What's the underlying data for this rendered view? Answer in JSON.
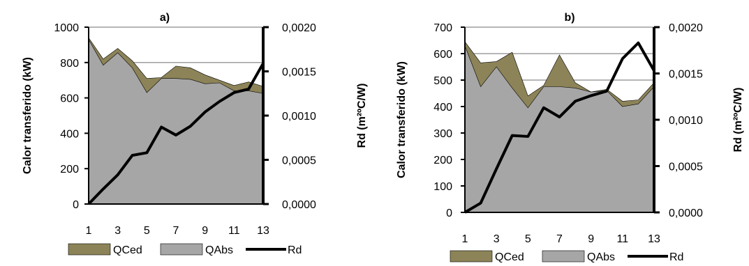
{
  "colors": {
    "qced": "#8c8358",
    "qabs": "#a6a6a6",
    "rd": "#000000",
    "grid": "#9e9e9e",
    "axis": "#000000"
  },
  "chart_data": [
    {
      "type": "area",
      "title": "a)",
      "x": [
        1,
        2,
        3,
        4,
        5,
        6,
        7,
        8,
        9,
        10,
        11,
        12,
        13
      ],
      "xticks": [
        "1",
        "3",
        "5",
        "7",
        "9",
        "11",
        "13"
      ],
      "ylabel": "Calor transferido (kW)",
      "y2label": "Rd (m²ºC/W)",
      "ylim": [
        0,
        1000
      ],
      "yticks": [
        "0",
        "200",
        "400",
        "600",
        "800",
        "1000"
      ],
      "y2lim": [
        0,
        0.002
      ],
      "y2ticks": [
        "0,0000",
        "0,0005",
        "0,0010",
        "0,0015",
        "0,0020"
      ],
      "grid": true,
      "legend_position": "bottom",
      "series": [
        {
          "name": "QCed",
          "axis": "left",
          "values": [
            940,
            820,
            880,
            810,
            710,
            715,
            780,
            770,
            730,
            700,
            670,
            690,
            665
          ]
        },
        {
          "name": "QAbs",
          "axis": "left",
          "values": [
            930,
            785,
            855,
            770,
            630,
            710,
            710,
            705,
            680,
            685,
            640,
            640,
            625
          ]
        },
        {
          "name": "Rd",
          "axis": "right",
          "values": [
            0.0,
            0.00017,
            0.00033,
            0.00055,
            0.00058,
            0.00087,
            0.00078,
            0.00088,
            0.00104,
            0.00116,
            0.00126,
            0.0013,
            0.00159
          ]
        }
      ]
    },
    {
      "type": "area",
      "title": "b)",
      "x": [
        1,
        2,
        3,
        4,
        5,
        6,
        7,
        8,
        9,
        10,
        11,
        12,
        13
      ],
      "xticks": [
        "1",
        "3",
        "5",
        "7",
        "9",
        "11",
        "13"
      ],
      "ylabel": "Calor transferido (kW)",
      "y2label": "Rd (m²ºC/W)",
      "ylim": [
        0,
        700
      ],
      "yticks": [
        "0",
        "100",
        "200",
        "300",
        "400",
        "500",
        "600",
        "700"
      ],
      "y2lim": [
        0,
        0.002
      ],
      "y2ticks": [
        "0,0000",
        "0,0005",
        "0,0010",
        "0,0015",
        "0,0020"
      ],
      "grid": true,
      "legend_position": "bottom",
      "series": [
        {
          "name": "QCed",
          "axis": "left",
          "values": [
            645,
            565,
            570,
            605,
            440,
            480,
            595,
            490,
            455,
            465,
            420,
            425,
            490
          ]
        },
        {
          "name": "QAbs",
          "axis": "left",
          "values": [
            630,
            475,
            550,
            470,
            395,
            475,
            475,
            470,
            455,
            460,
            400,
            410,
            475
          ]
        },
        {
          "name": "Rd",
          "axis": "right",
          "values": [
            0.0,
            0.0001,
            0.00047,
            0.00083,
            0.00082,
            0.00113,
            0.00103,
            0.0012,
            0.00126,
            0.00131,
            0.00166,
            0.00183,
            0.00153
          ]
        }
      ]
    }
  ]
}
